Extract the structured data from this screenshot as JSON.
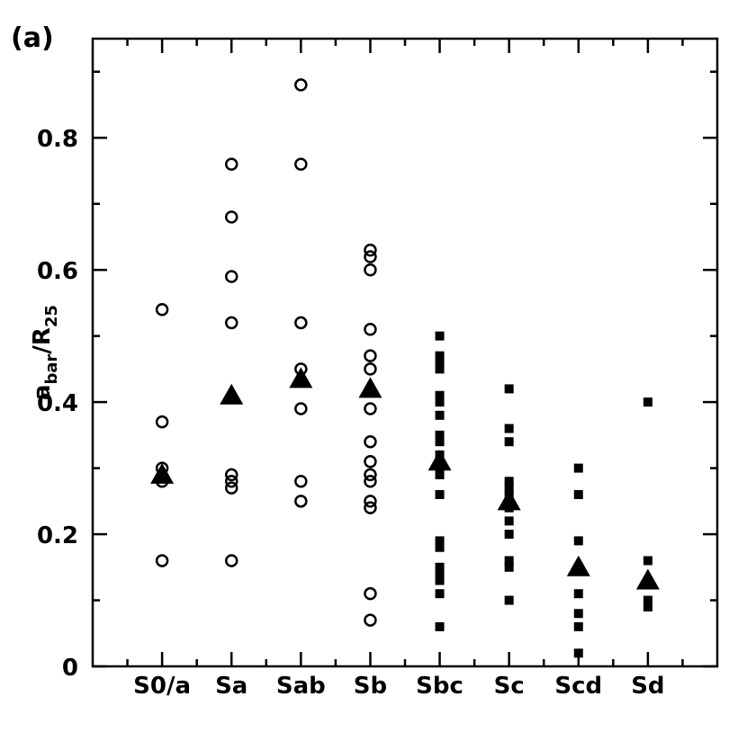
{
  "chart_data": {
    "type": "scatter",
    "panel_label": "(a)",
    "ylabel": [
      "a",
      "bar",
      "/R",
      "25"
    ],
    "categories": [
      "S0/a",
      "Sa",
      "Sab",
      "Sb",
      "Sbc",
      "Sc",
      "Scd",
      "Sd"
    ],
    "ylim": [
      0,
      0.95
    ],
    "yticks": [
      0,
      0.2,
      0.4,
      0.6,
      0.8
    ],
    "yminorticks": [
      0.1,
      0.3,
      0.5,
      0.7,
      0.9
    ],
    "series": [
      {
        "marker": "open-circle",
        "color": "#000000",
        "values": [
          [
            0.54,
            0.37,
            0.3,
            0.28,
            0.16
          ],
          [
            0.76,
            0.68,
            0.59,
            0.52,
            0.29,
            0.28,
            0.27,
            0.16
          ],
          [
            0.88,
            0.76,
            0.52,
            0.45,
            0.39,
            0.28,
            0.25
          ],
          [
            0.63,
            0.62,
            0.6,
            0.51,
            0.47,
            0.45,
            0.39,
            0.34,
            0.31,
            0.29,
            0.28,
            0.25,
            0.24,
            0.11,
            0.07
          ],
          [],
          [],
          [],
          []
        ]
      },
      {
        "marker": "filled-square",
        "color": "#000000",
        "values": [
          [],
          [],
          [],
          [],
          [
            0.5,
            0.47,
            0.46,
            0.45,
            0.41,
            0.4,
            0.38,
            0.35,
            0.34,
            0.32,
            0.29,
            0.26,
            0.19,
            0.18,
            0.15,
            0.14,
            0.13,
            0.11,
            0.06
          ],
          [
            0.42,
            0.36,
            0.34,
            0.28,
            0.27,
            0.26,
            0.24,
            0.22,
            0.2,
            0.16,
            0.15,
            0.1
          ],
          [
            0.3,
            0.26,
            0.19,
            0.15,
            0.11,
            0.08,
            0.06,
            0.02
          ],
          [
            0.4,
            0.16,
            0.1,
            0.09
          ]
        ]
      },
      {
        "marker": "filled-triangle",
        "color": "#000000",
        "values": [
          [
            0.29
          ],
          [
            0.41
          ],
          [
            0.435
          ],
          [
            0.42
          ],
          [
            0.31
          ],
          [
            0.25
          ],
          [
            0.15
          ],
          [
            0.13
          ]
        ]
      }
    ]
  }
}
